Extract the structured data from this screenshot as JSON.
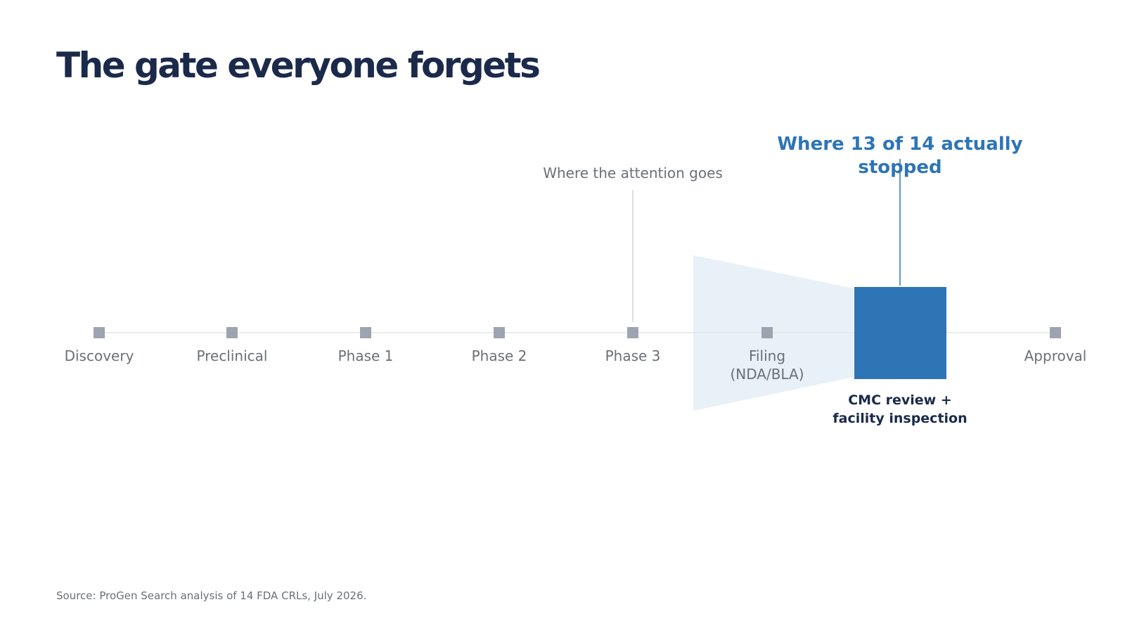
{
  "title": "The gate everyone forgets",
  "stages": [
    {
      "label_lines": [
        "Discovery"
      ]
    },
    {
      "label_lines": [
        "Preclinical"
      ]
    },
    {
      "label_lines": [
        "Phase 1"
      ]
    },
    {
      "label_lines": [
        "Phase 2"
      ]
    },
    {
      "label_lines": [
        "Phase 3"
      ]
    },
    {
      "label_lines": [
        "Filing",
        "(NDA/BLA)"
      ]
    },
    {
      "label_lines": [
        "Approval"
      ]
    }
  ],
  "gate": {
    "label_lines": [
      "CMC review +",
      "facility inspection"
    ]
  },
  "callouts": {
    "attention": "Where the attention goes",
    "stopped_lines": [
      "Where 13 of 14 actually",
      "stopped"
    ]
  },
  "source": "Source: ProGen Search analysis of 14 FDA CRLs, July 2026.",
  "colors": {
    "title": "#1b2a4a",
    "accent": "#2e75b6",
    "funnel": "#e8f0f8",
    "marker": "#9ea4af",
    "muted_text": "#6b7078",
    "timeline": "#e4e7ec",
    "leader_muted": "#cfd3d9"
  }
}
